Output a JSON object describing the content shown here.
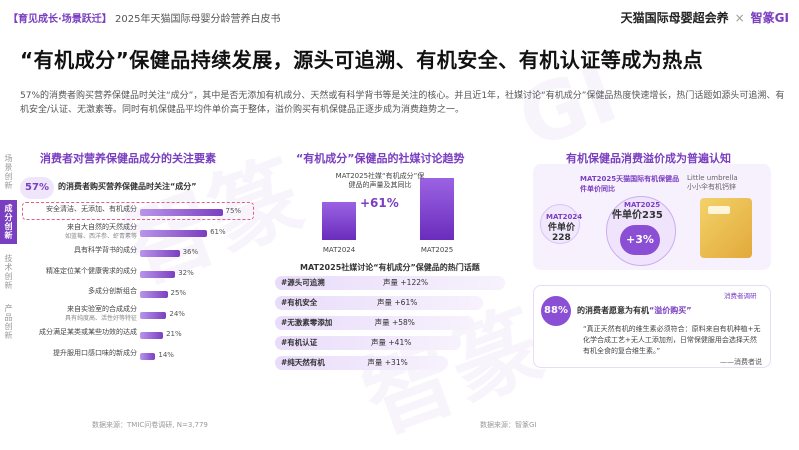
{
  "header": {
    "tag": "【育见成长·场景跃迁】",
    "report_title": "2025年天猫国际母婴分龄营养白皮书",
    "brand_left": "天猫国际母婴超会养",
    "brand_sep": "×",
    "brand_right": "智篆GI"
  },
  "page_title": "“有机成分”保健品持续发展，源头可追溯、有机安全、有机认证等成为热点",
  "intro": "57%的消费者购买营养保健品时关注“成分”，其中是否无添加有机成分、天然或有科学背书等是关注的核心。并且近1年，社媒讨论“有机成分”保健品热度快速增长，热门话题如源头可追溯、有机安全/认证、无激素等。同时有机保健品平均件单价高于整体，溢价购买有机保健品正逐步成为消费趋势之一。",
  "side_tabs": [
    {
      "label": "场景创新",
      "active": false
    },
    {
      "label": "成分创新",
      "active": true
    },
    {
      "label": "技术创新",
      "active": false
    },
    {
      "label": "产品创新",
      "active": false
    }
  ],
  "left_panel": {
    "title": "消费者对营养保健品成分的关注要素",
    "badge": "57%",
    "subtitle": "的消费者购买营养保健品时关注“成分”",
    "source": "数据来源：TMIC问卷调研, N=3,779"
  },
  "chart_data": [
    {
      "type": "bar",
      "orientation": "horizontal",
      "title": "消费者对营养保健品成分的关注要素",
      "categories": [
        "安全清洁、无添加、有机成分",
        "来自大自然的天然成分",
        "具有科学背书的成分",
        "精准定位某个健康需求的成分",
        "多成分创新组合",
        "来自实验室的合成成分",
        "成分满足某类或某些功效的达成",
        "提升服用口感口味的新成分"
      ],
      "subcategories": [
        "",
        "如蓝莓、西洋参、虾青素等",
        "",
        "",
        "",
        "具有纯度高、活性好等特征",
        "",
        ""
      ],
      "values": [
        75,
        61,
        36,
        32,
        25,
        24,
        21,
        14
      ],
      "value_labels": [
        "75%",
        "61%",
        "36%",
        "32%",
        "25%",
        "24%",
        "21%",
        "14%"
      ],
      "highlight_index": 0,
      "xlim": [
        0,
        100
      ]
    },
    {
      "type": "bar",
      "title": "“有机成分”保健品的社媒讨论趋势",
      "categories": [
        "MAT2024",
        "MAT2025"
      ],
      "values": [
        100,
        161
      ],
      "note": "MAT2025社媒“有机成分”保健品的声量及其同比",
      "growth_label": "+61%"
    }
  ],
  "middle_panel": {
    "title": "“有机成分”保健品的社媒讨论趋势",
    "topics_title": "MAT2025社媒讨论“有机成分”保健品的热门话题",
    "topics": [
      {
        "name": "#源头可追溯",
        "value": "声量 +122%",
        "level": 1.0
      },
      {
        "name": "#有机安全",
        "value": "声量 +61%",
        "level": 0.8
      },
      {
        "name": "#无激素零添加",
        "value": "声量 +58%",
        "level": 0.72
      },
      {
        "name": "#有机认证",
        "value": "声量 +41%",
        "level": 0.6
      },
      {
        "name": "#纯天然有机",
        "value": "声量 +31%",
        "level": 0.48
      }
    ],
    "source": "数据来源：智篆GI"
  },
  "right_panel": {
    "title": "有机保健品消费溢价成为普遍认知",
    "card_title": "MAT2025天猫国际有机保健品件单价同比",
    "mat2024_label": "MAT2024",
    "mat2024_price_label": "件单价",
    "mat2024_price": "228",
    "mat2025_label": "MAT2025",
    "mat2025_price_label": "件单价235",
    "growth": "+3%",
    "product_name": "Little umbrella",
    "product_desc": "小小伞有机钙锌",
    "survey_tag": "消费者调研",
    "badge": "88%",
    "q_prefix": "的消费者愿意为有机",
    "q_highlight": "“溢价购买”",
    "quote": "“真正天然有机的维生素必须符合：原料来自有机种植+无化学合成工艺+无人工添加剂，日常保健服用会选择天然有机全食的复合维生素。”",
    "quote_by": "——消费者说"
  },
  "colors": {
    "accent": "#7a3fc0",
    "highlight": "#e0607e"
  }
}
